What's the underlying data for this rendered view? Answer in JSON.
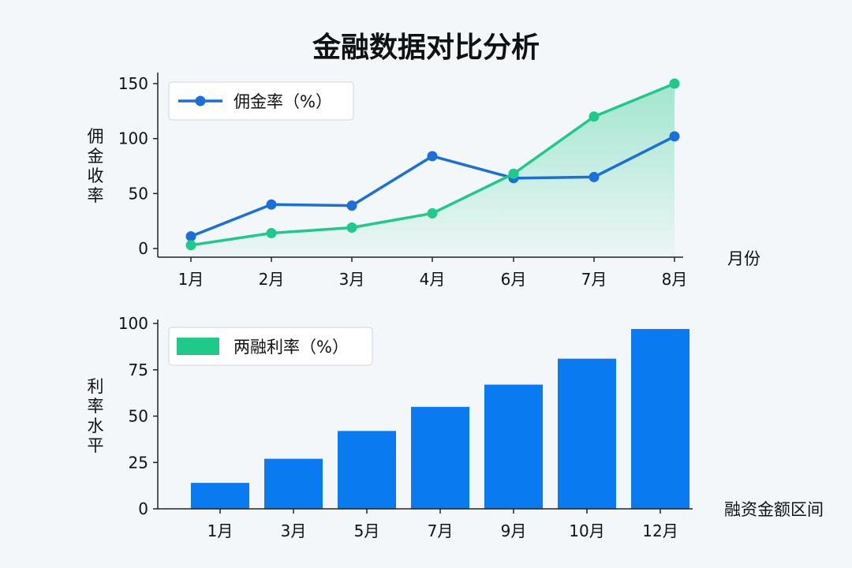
{
  "title": "金融数据对比分析",
  "chart_data": [
    {
      "type": "line",
      "categories": [
        "1月",
        "2月",
        "3月",
        "4月",
        "6月",
        "7月",
        "8月"
      ],
      "series": [
        {
          "name": "佣金率（%）",
          "values": [
            11,
            40,
            39,
            84,
            64,
            65,
            102
          ],
          "color": "#1a6fd9",
          "legend": true
        },
        {
          "name": "",
          "values": [
            3,
            14,
            19,
            32,
            68,
            120,
            150
          ],
          "color": "#1ec98a",
          "fill": "area",
          "legend": false
        }
      ],
      "xlabel": "月份",
      "ylabel": "佣金收率",
      "ylim": [
        0,
        150
      ],
      "yticks": [
        0,
        50,
        100,
        150
      ],
      "legend_position": "top-left",
      "grid": false
    },
    {
      "type": "bar",
      "categories": [
        "1月",
        "3月",
        "5月",
        "7月",
        "9月",
        "10月",
        "12月"
      ],
      "series": [
        {
          "name": "两融利率（%）",
          "values": [
            14,
            27,
            42,
            55,
            67,
            81,
            97
          ],
          "color": "#0a7af0",
          "legend_color": "#1ec98a"
        }
      ],
      "xlabel": "融资金额区间",
      "ylabel": "利率水平",
      "ylim": [
        0,
        100
      ],
      "yticks": [
        0,
        25,
        50,
        75,
        100
      ],
      "legend_position": "top-left",
      "grid": false
    }
  ]
}
